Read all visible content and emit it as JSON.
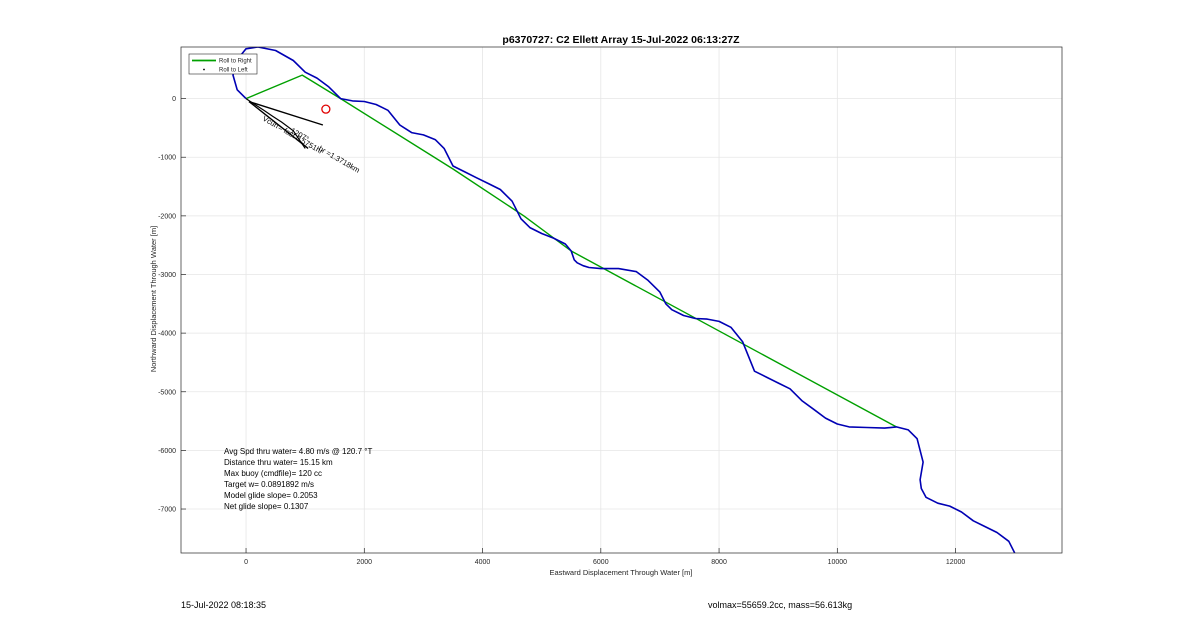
{
  "chart_data": {
    "type": "line",
    "title": "p6370727: C2 Ellett Array 15-Jul-2022 06:13:27Z",
    "xlabel": "Eastward Displacement Through Water [m]",
    "ylabel": "Northward Displacement Through Water [m]",
    "xlim": [
      -1100,
      13800
    ],
    "ylim": [
      -7750,
      880
    ],
    "xticks": [
      0,
      2000,
      4000,
      6000,
      8000,
      10000,
      12000
    ],
    "yticks": [
      0,
      -1000,
      -2000,
      -3000,
      -4000,
      -5000,
      -6000,
      -7000
    ],
    "grid": true,
    "legend": {
      "placement": "top-left",
      "entries": [
        {
          "label": "Roll to Right",
          "color": "#00a000",
          "style": "line"
        },
        {
          "label": "Roll to Left",
          "color": "#000000",
          "style": "dot"
        }
      ]
    },
    "series": [
      {
        "name": "Roll to Right",
        "color": "#00a000",
        "x": [
          0,
          950,
          1600,
          3500,
          4700,
          5500,
          11000
        ],
        "y": [
          0,
          400,
          0,
          -1200,
          -2000,
          -2600,
          -5600
        ]
      },
      {
        "name": "track",
        "color": "#0000b4",
        "x": [
          0,
          -150,
          -220,
          -160,
          0,
          200,
          500,
          800,
          1000,
          1200,
          1400,
          1600,
          1800,
          2000,
          2200,
          2400,
          2600,
          2800,
          3000,
          3200,
          3350,
          3500,
          3700,
          3900,
          4100,
          4300,
          4500,
          4650,
          4800,
          5000,
          5200,
          5400,
          5500,
          5550,
          5600,
          5700,
          5800,
          6000,
          6300,
          6600,
          6800,
          7000,
          7100,
          7200,
          7400,
          7600,
          7800,
          8000,
          8200,
          8400,
          8500,
          8600,
          8800,
          9000,
          9200,
          9400,
          9600,
          9800,
          10000,
          10200,
          10500,
          10800,
          11000,
          11200,
          11350,
          11450,
          11400,
          11420,
          11500,
          11700,
          11900,
          12100,
          12300,
          12500,
          12700,
          12900,
          13000
        ],
        "y": [
          0,
          150,
          400,
          650,
          850,
          880,
          820,
          650,
          450,
          350,
          200,
          0,
          -40,
          -50,
          -100,
          -200,
          -450,
          -580,
          -620,
          -700,
          -850,
          -1150,
          -1250,
          -1350,
          -1450,
          -1550,
          -1750,
          -2050,
          -2200,
          -2300,
          -2380,
          -2480,
          -2600,
          -2750,
          -2800,
          -2850,
          -2880,
          -2900,
          -2900,
          -2950,
          -3100,
          -3300,
          -3500,
          -3600,
          -3700,
          -3750,
          -3760,
          -3800,
          -3900,
          -4150,
          -4400,
          -4650,
          -4750,
          -4850,
          -4950,
          -5150,
          -5300,
          -5450,
          -5550,
          -5600,
          -5610,
          -5620,
          -5600,
          -5650,
          -5800,
          -6200,
          -6500,
          -6650,
          -6800,
          -6900,
          -6950,
          -7050,
          -7200,
          -7300,
          -7400,
          -7550,
          -7750
        ]
      },
      {
        "name": "Roll to Left",
        "color": "#000000",
        "x": [
          0,
          150,
          300,
          450,
          600,
          800,
          1000
        ],
        "y": [
          0,
          -100,
          -200,
          -300,
          -400,
          -550,
          -850
        ]
      }
    ],
    "annotations": [
      {
        "text": "Avg Spd thru water=  4.80 m/s @ 120.7 °T"
      },
      {
        "text": "Distance thru water= 15.15 km"
      },
      {
        "text": "Max buoy (cmdfile)= 120 cc"
      },
      {
        "text": "Target w= 0.0891892 m/s"
      },
      {
        "text": "Model glide slope= 0.2053"
      },
      {
        "text": "Net glide slope= 0.1307"
      },
      {
        "text": "hr =1.3718km",
        "rotated": true
      },
      {
        "text": "Vcurr= fast 0.5751hr",
        "rotated": true
      },
      {
        "text": "1207°",
        "rotated": true
      }
    ],
    "markers": [
      {
        "name": "target-circle",
        "x": 1350,
        "y": -180,
        "color": "#e00000"
      }
    ],
    "vectors": [
      {
        "x0": 50,
        "y0": -50,
        "x1": 1300,
        "y1": -450
      },
      {
        "x0": 50,
        "y0": -50,
        "x1": 1050,
        "y1": -850
      }
    ]
  },
  "footer": {
    "left": "15-Jul-2022 08:18:35",
    "right": "volmax=55659.2cc, mass=56.613kg"
  }
}
